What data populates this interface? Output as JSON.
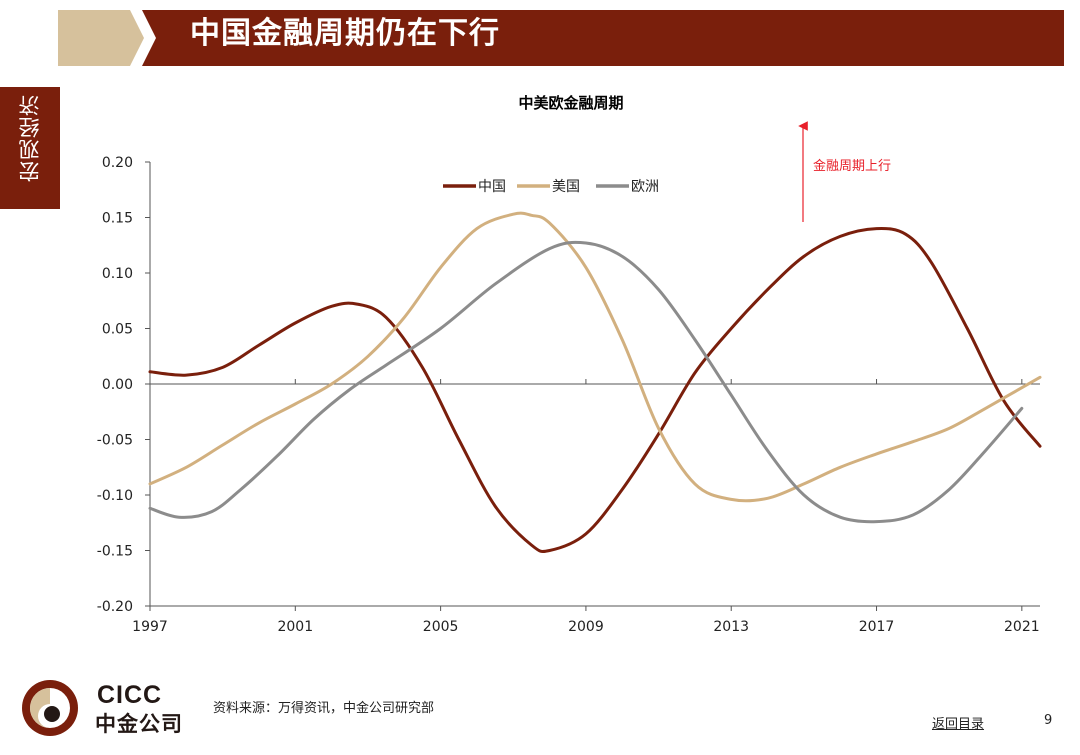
{
  "header": {
    "title": "中国金融周期仍在下行"
  },
  "sidebar": {
    "label": "宏观经济"
  },
  "chart_data": {
    "type": "line",
    "title": "中美欧金融周期",
    "xlabel": "",
    "ylabel": "",
    "x_ticks": [
      "1997",
      "2001",
      "2005",
      "2009",
      "2013",
      "2017",
      "2021"
    ],
    "y_ticks": [
      "0.20",
      "0.15",
      "0.10",
      "0.05",
      "0.00",
      "-0.05",
      "-0.10",
      "-0.15",
      "-0.20"
    ],
    "xlim": [
      1997,
      2021.5
    ],
    "ylim": [
      -0.2,
      0.2
    ],
    "grid": false,
    "legend_position": "top-center",
    "annotation": {
      "text": "金融周期上行",
      "color": "#e8202a"
    },
    "series": [
      {
        "name": "中国",
        "color": "#7a1f0c",
        "x": [
          1997,
          1998,
          1999,
          2000,
          2001,
          2002,
          2002.7,
          2003.5,
          2004.5,
          2005.5,
          2006.5,
          2007.5,
          2008,
          2009,
          2010,
          2011,
          2012,
          2013,
          2014,
          2015,
          2016,
          2017,
          2017.8,
          2018.5,
          2019.5,
          2020.5,
          2021.5
        ],
        "y": [
          0.011,
          0.008,
          0.015,
          0.035,
          0.055,
          0.07,
          0.072,
          0.06,
          0.015,
          -0.05,
          -0.11,
          -0.145,
          -0.15,
          -0.135,
          -0.095,
          -0.045,
          0.01,
          0.05,
          0.085,
          0.115,
          0.133,
          0.14,
          0.135,
          0.11,
          0.05,
          -0.015,
          -0.056
        ]
      },
      {
        "name": "美国",
        "color": "#d2b07f",
        "x": [
          1997,
          1998,
          1999,
          2000,
          2001,
          2002,
          2003,
          2004,
          2005,
          2006,
          2007,
          2007.5,
          2008,
          2009,
          2010,
          2011,
          2012,
          2013,
          2014,
          2015,
          2016,
          2017,
          2018,
          2019,
          2020,
          2021.5
        ],
        "y": [
          -0.09,
          -0.075,
          -0.055,
          -0.035,
          -0.018,
          0.0,
          0.025,
          0.06,
          0.105,
          0.14,
          0.153,
          0.152,
          0.145,
          0.105,
          0.04,
          -0.04,
          -0.09,
          -0.104,
          -0.103,
          -0.09,
          -0.075,
          -0.063,
          -0.052,
          -0.04,
          -0.022,
          0.006
        ]
      },
      {
        "name": "欧洲",
        "color": "#8c8c8c",
        "x": [
          1997,
          1997.8,
          1998.7,
          1999.5,
          2000.5,
          2001.5,
          2002.5,
          2003.5,
          2005,
          2006.5,
          2008,
          2009,
          2010,
          2011,
          2012,
          2013,
          2014,
          2015,
          2016,
          2017,
          2018,
          2019,
          2020,
          2021
        ],
        "y": [
          -0.112,
          -0.12,
          -0.115,
          -0.095,
          -0.065,
          -0.032,
          -0.005,
          0.017,
          0.05,
          0.09,
          0.122,
          0.127,
          0.115,
          0.085,
          0.04,
          -0.01,
          -0.06,
          -0.1,
          -0.12,
          -0.124,
          -0.118,
          -0.095,
          -0.06,
          -0.022
        ]
      }
    ]
  },
  "footer": {
    "logo_en": "CICC",
    "logo_cn": "中金公司",
    "source": "资料来源：万得资讯，中金公司研究部",
    "toc_link": "返回目录",
    "page_number": "9"
  },
  "colors": {
    "brand": "#7a1f0c",
    "accent_tan": "#d6c19c"
  }
}
